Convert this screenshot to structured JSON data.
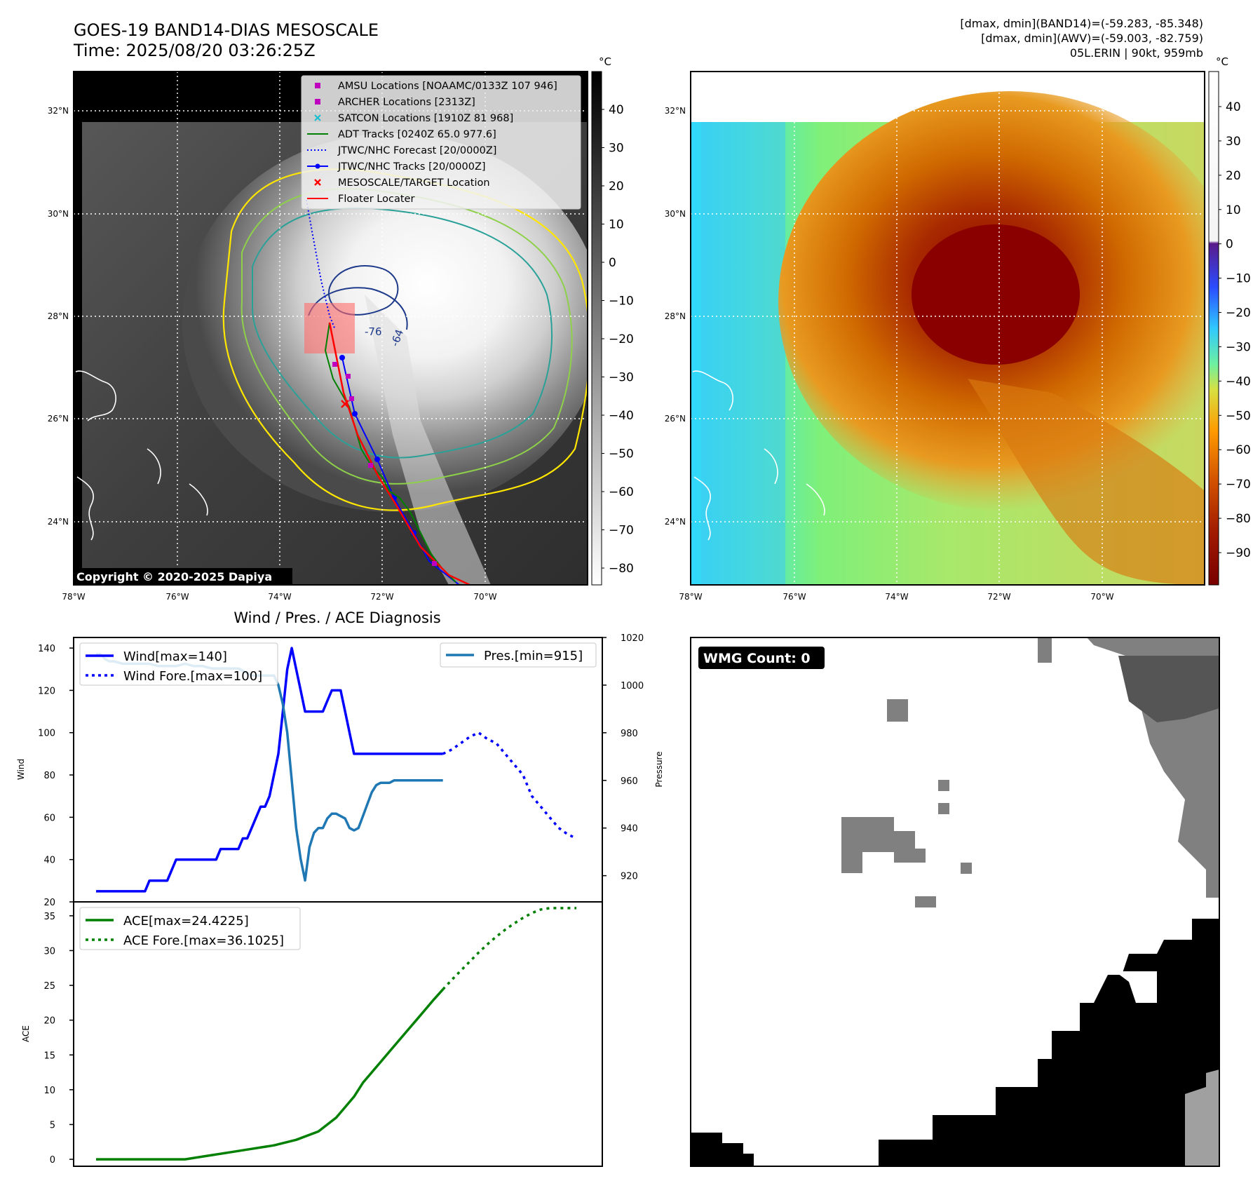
{
  "header": {
    "title_line1": "GOES-19 BAND14-DIAS MESOSCALE",
    "title_line2": "Time: 2025/08/20 03:26:25Z",
    "right_line1": "[dmax, dmin](BAND14)=(-59.283, -85.348)",
    "right_line2": "[dmax, dmin](AWV)=(-59.003, -82.759)",
    "right_line3": "05L.ERIN | 90kt, 959mb"
  },
  "copyright": "Copyright © 2020-2025 Dapiya",
  "colors": {
    "wind": "#0000ff",
    "pressure": "#1f77b4",
    "ace": "#008000",
    "adt": "#008000",
    "jtwc": "#0000ff",
    "floater": "#ff0000",
    "amsu": "#bf00bf",
    "satcon": "#17becf",
    "contour_yellow": "#ffe600",
    "contour_green": "#8ed04a",
    "contour_teal": "#2aa198",
    "contour_navy": "#1e3a8a"
  },
  "maps": {
    "lat_labels": [
      "32°N",
      "30°N",
      "28°N",
      "26°N",
      "24°N"
    ],
    "lon_labels": [
      "78°W",
      "76°W",
      "74°W",
      "72°W",
      "70°W"
    ],
    "ir_colorbar": {
      "unit": "°C",
      "ticks": [
        "40",
        "30",
        "20",
        "10",
        "0",
        "−10",
        "−20",
        "−30",
        "−40",
        "−50",
        "−60",
        "−70",
        "−80"
      ]
    },
    "awv_colorbar": {
      "unit": "°C",
      "ticks": [
        "40",
        "30",
        "20",
        "10",
        "0",
        "−10",
        "−20",
        "−30",
        "−40",
        "−50",
        "−60",
        "−70",
        "−80",
        "−90"
      ]
    },
    "contour_labels": [
      "-76",
      "-64"
    ],
    "legend": [
      {
        "icon": "square",
        "label": "AMSU Locations [NOAAMC/0133Z 107 946]"
      },
      {
        "icon": "square",
        "label": "ARCHER Locations [2313Z]"
      },
      {
        "icon": "x",
        "label": "SATCON Locations [1910Z 81 968]"
      },
      {
        "icon": "line",
        "label": "ADT Tracks [0240Z 65.0 977.6]"
      },
      {
        "icon": "dotted",
        "label": "JTWC/NHC Forecast [20/0000Z]"
      },
      {
        "icon": "line-dot",
        "label": "JTWC/NHC Tracks [20/0000Z]"
      },
      {
        "icon": "x",
        "label": "MESOSCALE/TARGET Location"
      },
      {
        "icon": "line",
        "label": "Floater Locater"
      }
    ]
  },
  "wmg": {
    "label": "WMG Count: 0"
  },
  "chart_data": [
    {
      "type": "line",
      "title": "Wind / Pres. / ACE Diagnosis",
      "ylabel": "Wind",
      "y2label": "Pressure",
      "ylim": [
        20,
        145
      ],
      "y2lim": [
        909,
        1020
      ],
      "yticks": [
        20,
        40,
        60,
        80,
        100,
        120,
        140
      ],
      "y2ticks": [
        920,
        940,
        960,
        980,
        1000,
        1020
      ],
      "legend_left": [
        "Wind[max=140]",
        "Wind Fore.[max=100]"
      ],
      "legend_right": [
        "Pres.[min=915]"
      ],
      "series": [
        {
          "name": "Wind[max=140]",
          "axis": "left",
          "x": [
            0,
            4,
            5,
            6,
            7,
            8,
            9,
            10,
            11,
            12,
            13,
            14,
            15,
            16,
            17,
            18,
            19,
            20,
            21,
            22,
            23,
            24,
            25,
            26,
            27,
            28,
            29,
            30,
            31,
            32,
            33,
            34,
            35,
            36,
            37,
            38,
            39,
            40,
            41,
            42,
            43,
            44,
            45,
            46,
            47,
            48,
            49,
            50,
            51,
            52,
            53,
            54,
            55,
            56,
            57,
            58,
            59,
            60,
            61,
            62,
            63,
            64,
            65,
            66,
            67,
            68,
            69,
            70,
            71,
            72,
            73,
            74,
            75,
            76,
            77,
            78
          ],
          "values": [
            25,
            25,
            25,
            25,
            25,
            25,
            25,
            25,
            25,
            30,
            30,
            30,
            30,
            30,
            35,
            40,
            40,
            40,
            40,
            40,
            40,
            40,
            40,
            40,
            40,
            45,
            45,
            45,
            45,
            45,
            50,
            50,
            55,
            60,
            65,
            65,
            70,
            80,
            90,
            110,
            130,
            140,
            130,
            120,
            110,
            110,
            110,
            110,
            110,
            115,
            120,
            120,
            120,
            110,
            100,
            90,
            90,
            90,
            90,
            90,
            90,
            90,
            90,
            90,
            90,
            90,
            90,
            90,
            90,
            90,
            90,
            90,
            90,
            90,
            90,
            90
          ]
        },
        {
          "name": "Wind Fore.[max=100]",
          "axis": "left",
          "style": "dotted",
          "x": [
            78,
            80,
            82,
            84,
            86,
            88,
            90,
            92,
            94,
            96,
            97,
            98,
            100,
            102,
            104,
            106,
            108
          ],
          "values": [
            90,
            92,
            95,
            98,
            100,
            97,
            95,
            90,
            85,
            80,
            75,
            70,
            65,
            60,
            55,
            52,
            50
          ]
        },
        {
          "name": "Pres.[min=915]",
          "axis": "right",
          "x": [
            0,
            1,
            2,
            3,
            4,
            6,
            8,
            10,
            12,
            14,
            16,
            18,
            20,
            22,
            24,
            26,
            28,
            30,
            32,
            34,
            35,
            36,
            37,
            38,
            39,
            40,
            41,
            42,
            43,
            44,
            45,
            46,
            47,
            48,
            49,
            50,
            51,
            52,
            53,
            54,
            55,
            56,
            57,
            58,
            59,
            60,
            61,
            62,
            63,
            64,
            65,
            66,
            67,
            68,
            69,
            70,
            71,
            72,
            73,
            74,
            75,
            76,
            77,
            78
          ],
          "values": [
            1013,
            1013,
            1011,
            1010,
            1010,
            1009,
            1009,
            1009,
            1009,
            1008,
            1008,
            1008,
            1009,
            1008,
            1008,
            1007,
            1007,
            1007,
            1007,
            1005,
            1004,
            1004,
            1004,
            1004,
            1004,
            1004,
            1000,
            992,
            980,
            960,
            940,
            927,
            918,
            932,
            938,
            940,
            940,
            944,
            946,
            946,
            945,
            944,
            940,
            939,
            940,
            945,
            950,
            955,
            958,
            959,
            959,
            959,
            960,
            960,
            960,
            960,
            960,
            960,
            960,
            960,
            960,
            960,
            960,
            960
          ]
        },
        {
          "name": "ACE[max=24.4225]",
          "axis": "lower",
          "x": [
            0,
            5,
            10,
            15,
            20,
            25,
            30,
            35,
            40,
            45,
            50,
            52,
            54,
            56,
            58,
            60,
            62,
            64,
            66,
            68,
            70,
            72,
            74,
            76,
            78
          ],
          "values": [
            0,
            0,
            0,
            0,
            0,
            0.5,
            1,
            1.5,
            2,
            2.8,
            4,
            5,
            6,
            7.5,
            9,
            11,
            12.5,
            14,
            15.5,
            17,
            18.5,
            20,
            21.5,
            23,
            24.4225
          ]
        },
        {
          "name": "ACE Fore.[max=36.1025]",
          "axis": "lower",
          "style": "dotted",
          "x": [
            78,
            80,
            82,
            84,
            86,
            88,
            90,
            92,
            94,
            96,
            98,
            100,
            102,
            104,
            106,
            108
          ],
          "values": [
            24.4225,
            25.8,
            27.1,
            28.4,
            29.7,
            30.9,
            32.0,
            33.0,
            33.9,
            34.7,
            35.4,
            35.9,
            36.1025,
            36.1025,
            36.1025,
            36.1025
          ]
        }
      ]
    },
    {
      "type": "line",
      "ylabel": "ACE",
      "ylim": [
        -1,
        37
      ],
      "yticks": [
        0,
        5,
        10,
        15,
        20,
        25,
        30,
        35
      ],
      "legend": [
        "ACE[max=24.4225]",
        "ACE Fore.[max=36.1025]"
      ]
    }
  ]
}
